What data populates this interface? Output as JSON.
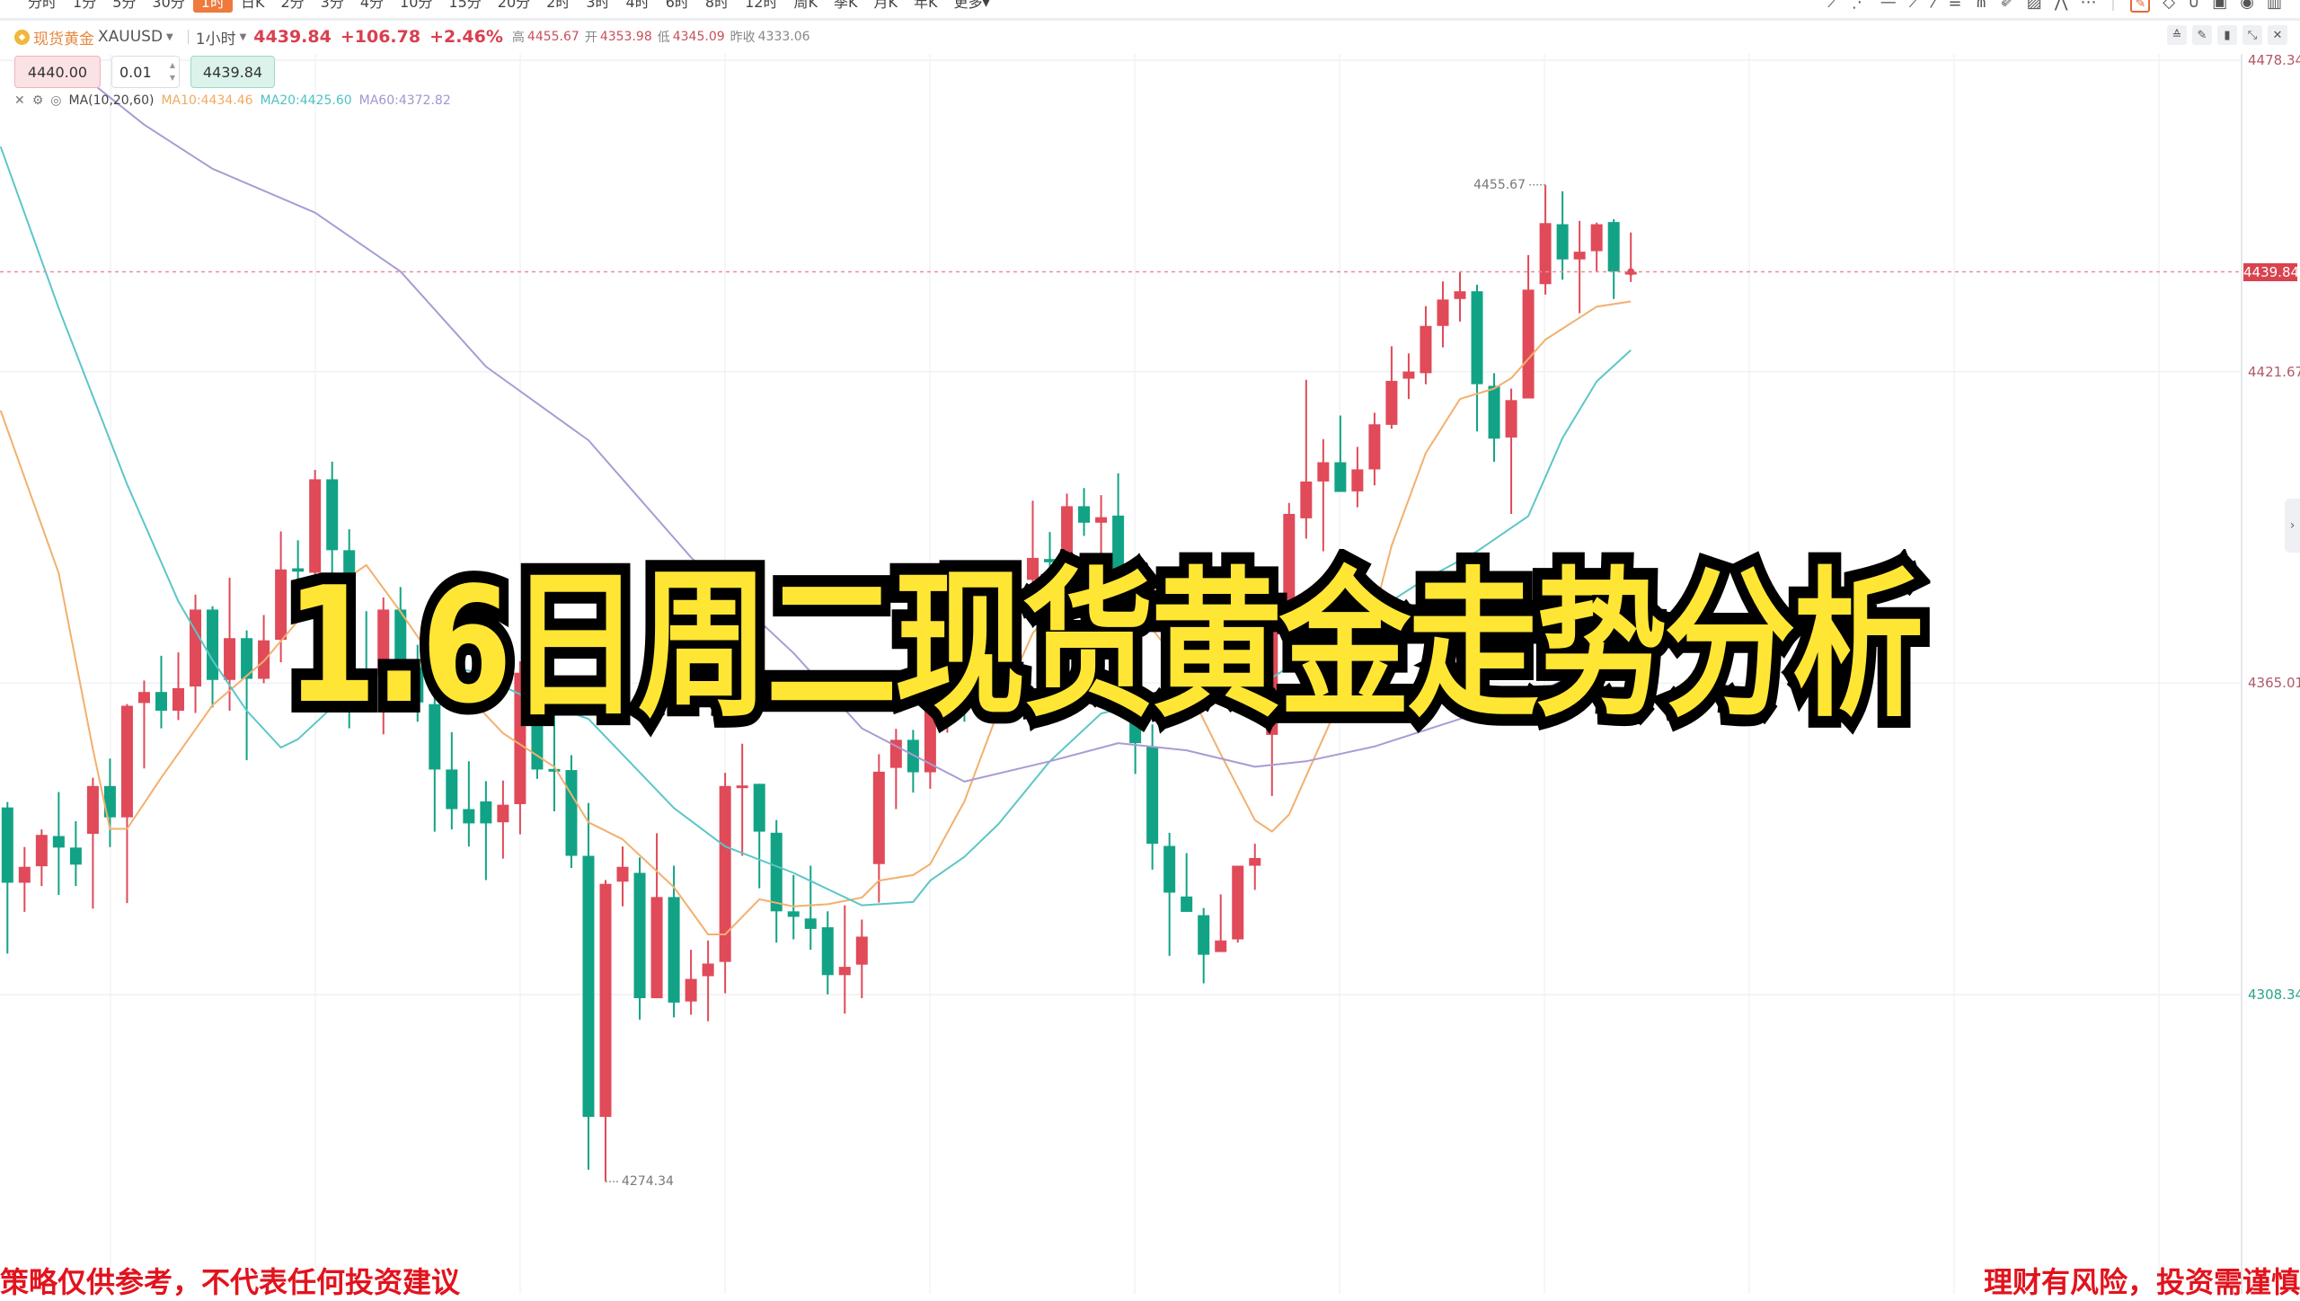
{
  "toolbar": {
    "periods": [
      "分时",
      "1分",
      "5分",
      "30分",
      "1时",
      "日K",
      "2分",
      "3分",
      "4分",
      "10分",
      "15分",
      "20分",
      "2时",
      "3时",
      "4时",
      "6时",
      "8时",
      "12时",
      "周K",
      "季K",
      "月K",
      "年K",
      "更多▾"
    ],
    "active_period": "1时",
    "tool_icons": [
      "trend-line-icon",
      "ray-icon",
      "horizontal-line-icon",
      "price-line-icon",
      "pen-icon",
      "fibonacci-icon",
      "fan-icon",
      "brush-icon",
      "image-icon",
      "pattern-icon",
      "more-icon",
      "draw-mode-icon",
      "eraser-icon",
      "magnet-icon",
      "lock-icon",
      "visibility-icon",
      "trash-icon"
    ]
  },
  "header": {
    "symbol_cn": "现货黄金",
    "symbol": "XAUUSD",
    "interval": "1小时",
    "price": "4439.84",
    "change": "+106.78",
    "change_pct": "+2.46%",
    "high_label": "高",
    "high": "4455.67",
    "open_label": "开",
    "open": "4353.98",
    "low_label": "低",
    "low": "4345.09",
    "prev_close_label": "昨收",
    "prev_close": "4333.06"
  },
  "order": {
    "sell_price": "4440.00",
    "quantity": "0.01",
    "buy_price": "4439.84"
  },
  "ma_legend": {
    "name": "MA(10,20,60)",
    "ma10": "MA10:4434.46",
    "ma20": "MA20:4425.60",
    "ma60": "MA60:4372.82"
  },
  "colors": {
    "up": "#e04a59",
    "down": "#12a386",
    "ma10": "#f2b06e",
    "ma20": "#5cc6c7",
    "ma60": "#a99bd4",
    "title_fill": "#ffe634",
    "disclaimer": "#e2131d"
  },
  "overlay": {
    "title": "1.6日周二现货黄金走势分析",
    "disclaimer_left": "策略仅供参考，不代表任何投资建议",
    "disclaimer_right": "理财有风险，投资需谨慎"
  },
  "chart_data": {
    "type": "candlestick",
    "interval": "1小时",
    "y_ticks": [
      "4478.34",
      "4421.67",
      "4365.01",
      "4308.34"
    ],
    "ylim": [
      4260,
      4490
    ],
    "current_price": "4439.84",
    "high_marker": "4455.67",
    "low_marker": "4274.34",
    "ohlc": [
      [
        4342.4,
        4343.4,
        4315.8,
        4328.7
      ],
      [
        4328.7,
        4335.2,
        4323.4,
        4331.6
      ],
      [
        4331.7,
        4338.4,
        4328.1,
        4337.4
      ],
      [
        4337.2,
        4345.2,
        4326.5,
        4335.1
      ],
      [
        4335.1,
        4339.9,
        4328.1,
        4332.0
      ],
      [
        4337.6,
        4347.8,
        4324.0,
        4346.3
      ],
      [
        4346.3,
        4351.3,
        4335.2,
        4340.6
      ],
      [
        4340.6,
        4361.2,
        4325.0,
        4360.9
      ],
      [
        4361.4,
        4365.5,
        4349.5,
        4363.4
      ],
      [
        4363.4,
        4370.0,
        4356.8,
        4360.0
      ],
      [
        4360.0,
        4370.6,
        4358.3,
        4364.1
      ],
      [
        4364.4,
        4381.1,
        4359.6,
        4378.4
      ],
      [
        4378.4,
        4379.0,
        4360.6,
        4365.6
      ],
      [
        4365.6,
        4384.2,
        4360.0,
        4373.2
      ],
      [
        4373.2,
        4374.6,
        4351.0,
        4365.8
      ],
      [
        4365.8,
        4377.4,
        4365.0,
        4372.8
      ],
      [
        4372.9,
        4392.6,
        4368.8,
        4385.7
      ],
      [
        4385.9,
        4391.0,
        4382.2,
        4385.3
      ],
      [
        4385.1,
        4403.8,
        4384.6,
        4402.1
      ],
      [
        4402.1,
        4405.3,
        4383.4,
        4389.2
      ],
      [
        4389.2,
        4393.0,
        4356.8,
        4367.3
      ],
      [
        4367.1,
        4378.1,
        4360.3,
        4365.9
      ],
      [
        4366.5,
        4380.6,
        4355.7,
        4378.4
      ],
      [
        4378.4,
        4382.5,
        4366.0,
        4368.0
      ],
      [
        4368.0,
        4372.0,
        4358.0,
        4361.5
      ],
      [
        4361.2,
        4364.0,
        4338.0,
        4349.3
      ],
      [
        4349.3,
        4356.1,
        4338.4,
        4342.1
      ],
      [
        4342.1,
        4350.8,
        4335.3,
        4339.5
      ],
      [
        4343.5,
        4347.2,
        4329.2,
        4339.5
      ],
      [
        4339.7,
        4347.3,
        4333.1,
        4342.9
      ],
      [
        4343.0,
        4369.0,
        4337.5,
        4366.9
      ],
      [
        4366.9,
        4369.0,
        4347.6,
        4349.3
      ],
      [
        4349.4,
        4360.3,
        4341.7,
        4349.2
      ],
      [
        4349.2,
        4351.9,
        4331.4,
        4333.6
      ],
      [
        4333.6,
        4343.2,
        4276.5,
        4286.1
      ],
      [
        4286.1,
        4329.2,
        4274.34,
        4328.5
      ],
      [
        4328.9,
        4335.3,
        4324.4,
        4331.6
      ],
      [
        4330.5,
        4333.3,
        4303.8,
        4307.7
      ],
      [
        4307.7,
        4337.7,
        4307.7,
        4326.1
      ],
      [
        4326.1,
        4331.8,
        4304.2,
        4306.9
      ],
      [
        4307.1,
        4316.5,
        4304.7,
        4311.2
      ],
      [
        4311.7,
        4318.2,
        4303.5,
        4314.0
      ],
      [
        4314.3,
        4348.7,
        4308.6,
        4346.3
      ],
      [
        4346.3,
        4354.0,
        4333.6,
        4346.4
      ],
      [
        4346.7,
        4346.7,
        4327.7,
        4338.0
      ],
      [
        4337.8,
        4340.1,
        4317.8,
        4323.5
      ],
      [
        4323.5,
        4330.1,
        4318.4,
        4322.5
      ],
      [
        4322.2,
        4331.8,
        4316.5,
        4320.3
      ],
      [
        4320.6,
        4323.5,
        4308.4,
        4311.9
      ],
      [
        4311.9,
        4324.6,
        4304.9,
        4313.4
      ],
      [
        4313.8,
        4322.0,
        4307.7,
        4318.9
      ],
      [
        4332.1,
        4352.1,
        4325.1,
        4348.9
      ],
      [
        4349.6,
        4356.7,
        4342.1,
        4354.7
      ],
      [
        4354.7,
        4356.5,
        4345.1,
        4348.8
      ],
      [
        4348.8,
        4365.0,
        4345.8,
        4360.1
      ],
      [
        4360.1,
        4368.0,
        4356.0,
        4365.0
      ],
      [
        4365.0,
        4369.0,
        4358.0,
        4362.0
      ],
      [
        4362.0,
        4376.0,
        4359.0,
        4374.0
      ],
      [
        4381.5,
        4383.0,
        4370.0,
        4374.0
      ],
      [
        4374.0,
        4384.1,
        4371.0,
        4383.8
      ],
      [
        4383.8,
        4398.2,
        4380.0,
        4387.8
      ],
      [
        4387.6,
        4392.5,
        4382.0,
        4387.0
      ],
      [
        4386.5,
        4399.5,
        4385.0,
        4397.2
      ],
      [
        4397.2,
        4400.5,
        4391.8,
        4394.2
      ],
      [
        4394.2,
        4399.2,
        4386.1,
        4395.2
      ],
      [
        4395.5,
        4403.2,
        4366.0,
        4370.0
      ],
      [
        4370.0,
        4373.0,
        4348.5,
        4354.1
      ],
      [
        4353.5,
        4357.5,
        4331.1,
        4335.8
      ],
      [
        4335.4,
        4337.8,
        4315.4,
        4326.9
      ],
      [
        4326.2,
        4334.1,
        4323.4,
        4323.4
      ],
      [
        4322.8,
        4324.1,
        4310.4,
        4315.6
      ],
      [
        4316.1,
        4326.6,
        4316.1,
        4318.2
      ],
      [
        4318.4,
        4331.8,
        4317.8,
        4331.8
      ],
      [
        4331.8,
        4335.8,
        4327.4,
        4333.2
      ],
      [
        4355.6,
        4380.0,
        4344.5,
        4378.0
      ],
      [
        4378.0,
        4397.8,
        4374.0,
        4395.8
      ],
      [
        4395.0,
        4420.2,
        4391.3,
        4401.7
      ],
      [
        4401.7,
        4409.4,
        4389.0,
        4405.2
      ],
      [
        4405.2,
        4413.7,
        4399.8,
        4399.8
      ],
      [
        4399.9,
        4408.0,
        4397.0,
        4403.9
      ],
      [
        4403.9,
        4414.2,
        4401.0,
        4412.1
      ],
      [
        4412.0,
        4426.3,
        4411.3,
        4420.0
      ],
      [
        4420.4,
        4425.0,
        4416.7,
        4421.7
      ],
      [
        4421.4,
        4433.6,
        4419.4,
        4430.0
      ],
      [
        4430.0,
        4438.1,
        4426.1,
        4434.8
      ],
      [
        4434.9,
        4439.9,
        4430.8,
        4436.3
      ],
      [
        4436.3,
        4437.5,
        4410.8,
        4419.4
      ],
      [
        4419.1,
        4421.4,
        4405.3,
        4409.5
      ],
      [
        4409.7,
        4418.6,
        4395.8,
        4416.5
      ],
      [
        4416.8,
        4442.9,
        4416.8,
        4436.6
      ],
      [
        4437.6,
        4455.67,
        4435.7,
        4448.7
      ],
      [
        4448.5,
        4454.5,
        4438.4,
        4442.1
      ],
      [
        4442.1,
        4449.1,
        4432.3,
        4443.5
      ],
      [
        4443.6,
        4448.8,
        4439.8,
        4448.5
      ],
      [
        4448.9,
        4449.4,
        4434.9,
        4439.9
      ],
      [
        4439.84,
        4447.0,
        4438.0,
        4439.84
      ]
    ],
    "series": [
      {
        "name": "MA10",
        "points": [
          [
            -0.4,
            4414.6
          ],
          [
            3,
            4385
          ],
          [
            5,
            4353
          ],
          [
            6,
            4338.5
          ],
          [
            7,
            4338.5
          ],
          [
            9,
            4347.8
          ],
          [
            12,
            4361
          ],
          [
            15,
            4369
          ],
          [
            18,
            4380
          ],
          [
            21,
            4386.5
          ],
          [
            23,
            4378
          ],
          [
            25,
            4369
          ],
          [
            29,
            4355.9
          ],
          [
            32,
            4349.8
          ],
          [
            34,
            4339.7
          ],
          [
            36,
            4336.6
          ],
          [
            39,
            4327.9
          ],
          [
            41,
            4319.3
          ],
          [
            42,
            4319.3
          ],
          [
            44,
            4325.7
          ],
          [
            46,
            4324.4
          ],
          [
            48,
            4324.8
          ],
          [
            50,
            4326.0
          ],
          [
            51,
            4329.1
          ],
          [
            53,
            4330.1
          ],
          [
            54,
            4332.1
          ],
          [
            56,
            4343.5
          ],
          [
            58,
            4360.1
          ],
          [
            60,
            4374.1
          ],
          [
            62,
            4381
          ],
          [
            64,
            4385.1
          ],
          [
            65,
            4382.8
          ],
          [
            68,
            4370.8
          ],
          [
            71,
            4352.1
          ],
          [
            73,
            4340.1
          ],
          [
            74,
            4338.0
          ],
          [
            75,
            4341.1
          ],
          [
            76,
            4348.1
          ],
          [
            78,
            4362
          ],
          [
            80,
            4378
          ],
          [
            81,
            4390
          ],
          [
            83,
            4406.9
          ],
          [
            85,
            4416.7
          ],
          [
            87,
            4418.6
          ],
          [
            88,
            4420.5
          ],
          [
            90,
            4427.5
          ],
          [
            93,
            4433.5
          ],
          [
            95,
            4434.46
          ]
        ]
      },
      {
        "name": "MA20",
        "points": [
          [
            -0.4,
            4462.6
          ],
          [
            3,
            4433.2
          ],
          [
            7,
            4401.2
          ],
          [
            10,
            4379.9
          ],
          [
            12,
            4369.2
          ],
          [
            14,
            4360
          ],
          [
            16,
            4353.3
          ],
          [
            17,
            4354.8
          ],
          [
            19,
            4360.6
          ],
          [
            21,
            4365.9
          ],
          [
            24,
            4368
          ],
          [
            27,
            4367.3
          ],
          [
            30,
            4363
          ],
          [
            34,
            4358.5
          ],
          [
            39,
            4342.3
          ],
          [
            42,
            4335.3
          ],
          [
            46,
            4330.5
          ],
          [
            50,
            4324.6
          ],
          [
            53,
            4325.2
          ],
          [
            54,
            4329.1
          ],
          [
            56,
            4333.4
          ],
          [
            58,
            4339.4
          ],
          [
            61,
            4350.8
          ],
          [
            64,
            4359.5
          ],
          [
            66,
            4361
          ],
          [
            70,
            4363
          ],
          [
            74,
            4366
          ],
          [
            77,
            4372
          ],
          [
            80,
            4378
          ],
          [
            83,
            4384
          ],
          [
            86,
            4389
          ],
          [
            89,
            4395.4
          ],
          [
            91,
            4409.6
          ],
          [
            93,
            4419.9
          ],
          [
            95,
            4425.6
          ]
        ]
      },
      {
        "name": "MA60",
        "points": [
          [
            3.4,
            4478
          ],
          [
            8,
            4466.6
          ],
          [
            12,
            4458.6
          ],
          [
            18,
            4450.6
          ],
          [
            23,
            4439.9
          ],
          [
            28,
            4422.6
          ],
          [
            34,
            4409.2
          ],
          [
            40,
            4387.9
          ],
          [
            46,
            4370.5
          ],
          [
            50,
            4356.8
          ],
          [
            56,
            4347.1
          ],
          [
            61,
            4350.8
          ],
          [
            65,
            4354.1
          ],
          [
            69,
            4352.8
          ],
          [
            73,
            4349.8
          ],
          [
            76,
            4350.8
          ],
          [
            80,
            4353.5
          ],
          [
            85,
            4358.5
          ],
          [
            88,
            4361
          ],
          [
            92,
            4367
          ],
          [
            95,
            4372.82
          ]
        ]
      }
    ]
  }
}
